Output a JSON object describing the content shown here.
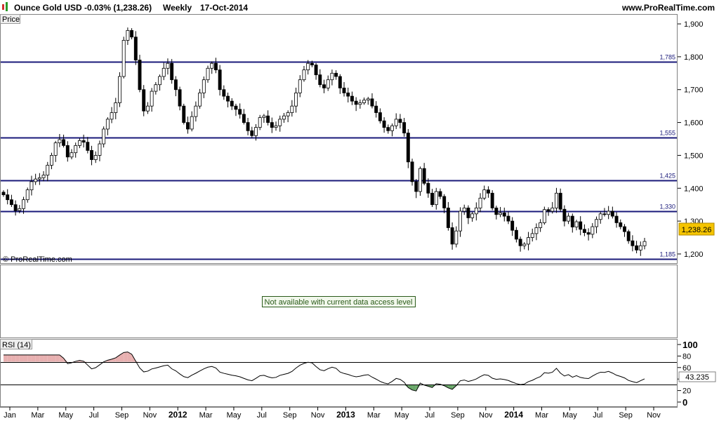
{
  "header": {
    "instrument": "Ounce Gold USD",
    "change": "-0.03% (1,238.26)",
    "period": "Weekly",
    "date": "17-Oct-2014",
    "site": "www.ProRealTime.com"
  },
  "price_panel": {
    "label": "Price",
    "watermark": "© ProRealTime.com",
    "last_price_label": "1,238.26"
  },
  "middle_panel": {
    "notice": "Not available with current data access level"
  },
  "rsi_panel": {
    "label": "RSI (14)",
    "last_value_label": "43.235"
  },
  "colors": {
    "level_line": "#1a1a7a",
    "candle_up": "#ffffff",
    "candle_down": "#000000",
    "price_badge": "#f5c400",
    "overbought_fill": "#e8b0b0",
    "oversold_fill": "#6aa86a",
    "notice_border": "#2a5a1a",
    "notice_bg": "#f2f8ec"
  },
  "chart_data": [
    {
      "type": "candlestick",
      "ylim": [
        1170,
        1930
      ],
      "y_ticks": [
        1200,
        1300,
        1400,
        1500,
        1600,
        1700,
        1800,
        1900
      ],
      "y_tick_labels": [
        "1,200",
        "1,300",
        "1,400",
        "1,500",
        "1,600",
        "1,700",
        "1,800",
        "1,900"
      ],
      "x_tick_labels": [
        {
          "label": "Jan",
          "year_label": false
        },
        {
          "label": "Mar",
          "year_label": false
        },
        {
          "label": "May",
          "year_label": false
        },
        {
          "label": "Jul",
          "year_label": false
        },
        {
          "label": "Sep",
          "year_label": false
        },
        {
          "label": "Nov",
          "year_label": false
        },
        {
          "label": "2012",
          "year_label": true
        },
        {
          "label": "Mar",
          "year_label": false
        },
        {
          "label": "May",
          "year_label": false
        },
        {
          "label": "Jul",
          "year_label": false
        },
        {
          "label": "Sep",
          "year_label": false
        },
        {
          "label": "Nov",
          "year_label": false
        },
        {
          "label": "2013",
          "year_label": true
        },
        {
          "label": "Mar",
          "year_label": false
        },
        {
          "label": "May",
          "year_label": false
        },
        {
          "label": "Jul",
          "year_label": false
        },
        {
          "label": "Sep",
          "year_label": false
        },
        {
          "label": "Nov",
          "year_label": false
        },
        {
          "label": "2014",
          "year_label": true
        },
        {
          "label": "Mar",
          "year_label": false
        },
        {
          "label": "May",
          "year_label": false
        },
        {
          "label": "Jul",
          "year_label": false
        },
        {
          "label": "Sep",
          "year_label": false
        },
        {
          "label": "Nov",
          "year_label": false
        }
      ],
      "levels": [
        {
          "value": 1785,
          "label": "1,785"
        },
        {
          "value": 1555,
          "label": "1,555"
        },
        {
          "value": 1425,
          "label": "1,425"
        },
        {
          "value": 1330,
          "label": "1,330"
        },
        {
          "value": 1185,
          "label": "1,185"
        }
      ],
      "last_price": 1238.26,
      "closes": [
        1380,
        1365,
        1350,
        1332,
        1338,
        1365,
        1395,
        1420,
        1428,
        1432,
        1440,
        1470,
        1500,
        1538,
        1548,
        1530,
        1495,
        1508,
        1530,
        1545,
        1540,
        1515,
        1487,
        1500,
        1535,
        1580,
        1610,
        1630,
        1660,
        1740,
        1850,
        1880,
        1860,
        1790,
        1700,
        1635,
        1650,
        1695,
        1715,
        1740,
        1765,
        1780,
        1730,
        1700,
        1650,
        1600,
        1580,
        1618,
        1650,
        1690,
        1730,
        1765,
        1780,
        1760,
        1700,
        1680,
        1665,
        1650,
        1640,
        1625,
        1600,
        1575,
        1560,
        1585,
        1615,
        1620,
        1600,
        1585,
        1590,
        1610,
        1620,
        1630,
        1650,
        1690,
        1730,
        1760,
        1780,
        1775,
        1745,
        1715,
        1705,
        1730,
        1750,
        1740,
        1705,
        1690,
        1680,
        1665,
        1655,
        1660,
        1668,
        1672,
        1650,
        1630,
        1605,
        1585,
        1575,
        1590,
        1610,
        1600,
        1568,
        1480,
        1420,
        1390,
        1460,
        1415,
        1385,
        1350,
        1390,
        1375,
        1340,
        1280,
        1230,
        1270,
        1330,
        1340,
        1310,
        1322,
        1340,
        1370,
        1395,
        1385,
        1340,
        1320,
        1325,
        1315,
        1300,
        1272,
        1245,
        1225,
        1230,
        1250,
        1262,
        1280,
        1295,
        1335,
        1330,
        1340,
        1385,
        1336,
        1300,
        1315,
        1282,
        1298,
        1275,
        1265,
        1260,
        1283,
        1305,
        1322,
        1320,
        1330,
        1315,
        1295,
        1283,
        1268,
        1240,
        1225,
        1212,
        1225,
        1238
      ]
    },
    {
      "type": "line",
      "name": "RSI (14)",
      "ylim": [
        0,
        100
      ],
      "y_ticks": [
        0,
        20,
        40,
        60,
        80,
        100
      ],
      "bands": [
        30,
        70
      ],
      "last_value": 43.235
    }
  ]
}
